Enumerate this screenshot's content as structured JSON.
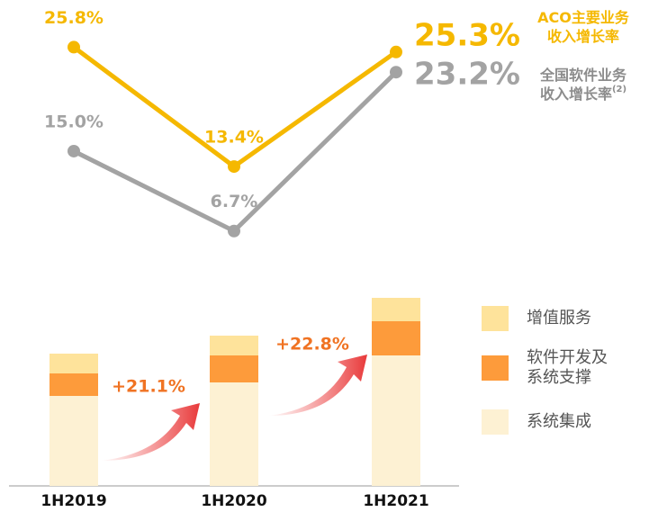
{
  "chart_data": [
    {
      "type": "line",
      "ylim": [
        4.9,
        30.7
      ],
      "series": [
        {
          "name": [
            "ACO主要业务",
            "收入增长率"
          ],
          "color": "#f5b800",
          "values": [
            25.8,
            13.4,
            25.3
          ],
          "value_labels": [
            "25.8%",
            "13.4%",
            "25.3%"
          ]
        },
        {
          "name": [
            "全国软件业务",
            "收入增长率"
          ],
          "note_mark": "(2)",
          "color": "#a3a3a3",
          "values": [
            15.0,
            6.7,
            23.2
          ],
          "value_labels": [
            "15.0%",
            "6.7%",
            "23.2%"
          ]
        }
      ]
    },
    {
      "type": "stacked_bar",
      "categories": [
        "1H2019",
        "1H2020",
        "1H2021"
      ],
      "ylim": [
        0,
        215
      ],
      "series": [
        {
          "name": [
            "系统集成"
          ],
          "color": "#fdf1d3",
          "values": [
            100,
            115,
            145
          ]
        },
        {
          "name": [
            "软件开发及",
            "系统支撑"
          ],
          "color": "#fd9b3b",
          "values": [
            25,
            30,
            38
          ]
        },
        {
          "name": [
            "增值服务"
          ],
          "color": "#fee39b",
          "values": [
            22,
            22,
            26
          ]
        }
      ],
      "annotations": [
        "+21.1%",
        "+22.8%"
      ],
      "annotation_color": "#f07323"
    }
  ]
}
